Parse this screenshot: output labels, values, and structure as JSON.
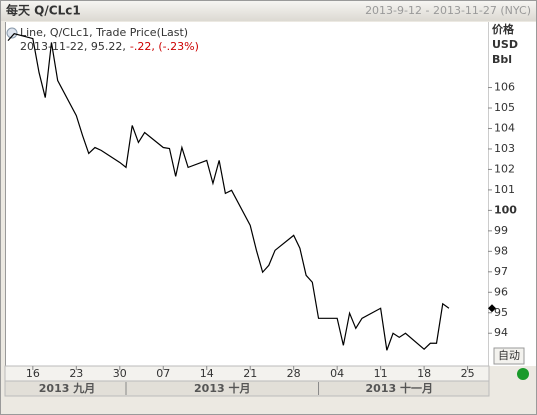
{
  "header": {
    "title": "每天 Q/CLc1",
    "range": "2013-9-12 - 2013-11-27 (NYC)"
  },
  "chart_data": {
    "type": "line",
    "x": [
      "2013-09-12",
      "2013-09-13",
      "2013-09-16",
      "2013-09-17",
      "2013-09-18",
      "2013-09-19",
      "2013-09-20",
      "2013-09-23",
      "2013-09-24",
      "2013-09-25",
      "2013-09-26",
      "2013-09-27",
      "2013-09-30",
      "2013-10-01",
      "2013-10-02",
      "2013-10-03",
      "2013-10-04",
      "2013-10-07",
      "2013-10-08",
      "2013-10-09",
      "2013-10-10",
      "2013-10-11",
      "2013-10-14",
      "2013-10-15",
      "2013-10-16",
      "2013-10-17",
      "2013-10-18",
      "2013-10-21",
      "2013-10-22",
      "2013-10-23",
      "2013-10-24",
      "2013-10-25",
      "2013-10-28",
      "2013-10-29",
      "2013-10-30",
      "2013-10-31",
      "2013-11-01",
      "2013-11-04",
      "2013-11-05",
      "2013-11-06",
      "2013-11-07",
      "2013-11-08",
      "2013-11-11",
      "2013-11-12",
      "2013-11-13",
      "2013-11-14",
      "2013-11-15",
      "2013-11-18",
      "2013-11-19",
      "2013-11-20",
      "2013-11-21",
      "2013-11-22"
    ],
    "series": [
      {
        "name": "Line, Q/CLc1, Trade Price(Last)",
        "color": "#000000",
        "values": [
          108.29,
          108.63,
          108.39,
          106.73,
          105.51,
          108.2,
          106.34,
          104.63,
          103.66,
          102.78,
          103.07,
          102.93,
          102.34,
          102.1,
          104.15,
          103.32,
          103.8,
          103.07,
          103.02,
          101.66,
          103.07,
          102.1,
          102.44,
          101.32,
          102.44,
          100.83,
          100.98,
          99.27,
          98.05,
          96.98,
          97.32,
          98.05,
          98.78,
          98.15,
          96.83,
          96.49,
          94.73,
          94.73,
          93.41,
          94.98,
          94.24,
          94.73,
          95.22,
          93.17,
          94.0,
          93.8,
          94.0,
          93.22,
          93.51,
          93.51,
          95.44,
          95.22
        ]
      }
    ],
    "legend_detail": {
      "text": "2013-11-22, 95.22,",
      "change": "-.22, (-.23%)"
    },
    "xlim": [
      "2013-09-12",
      "2013-11-27"
    ],
    "xticks": [
      {
        "value": "2013-09-16",
        "label": "16"
      },
      {
        "value": "2013-09-23",
        "label": "23"
      },
      {
        "value": "2013-09-30",
        "label": "30"
      },
      {
        "value": "2013-10-07",
        "label": "07"
      },
      {
        "value": "2013-10-14",
        "label": "14"
      },
      {
        "value": "2013-10-21",
        "label": "21"
      },
      {
        "value": "2013-10-28",
        "label": "28"
      },
      {
        "value": "2013-11-04",
        "label": "04"
      },
      {
        "value": "2013-11-11",
        "label": "11"
      },
      {
        "value": "2013-11-18",
        "label": "18"
      },
      {
        "value": "2013-11-25",
        "label": "25"
      }
    ],
    "months": [
      {
        "value": "2013-09-01",
        "label": "2013 九月"
      },
      {
        "value": "2013-10-01",
        "label": "2013 十月"
      },
      {
        "value": "2013-11-01",
        "label": "2013 十一月"
      }
    ],
    "ylim": [
      92.4,
      109.2
    ],
    "yticks": [
      94,
      95,
      96,
      97,
      98,
      99,
      100,
      101,
      102,
      103,
      104,
      105,
      106
    ],
    "emphasized_ytick": 100,
    "y_axis_label": [
      "价格",
      "USD",
      "Bbl"
    ],
    "auto_button": "自动"
  }
}
